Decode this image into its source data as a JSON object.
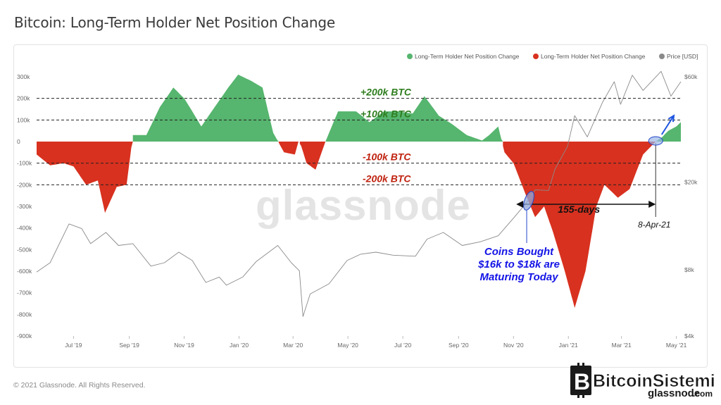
{
  "page": {
    "title": "Bitcoin: Long-Term Holder Net Position Change",
    "footer": "© 2021 Glassnode. All Rights Reserved.",
    "watermark": "glassnode",
    "brand_name": "BitcoinSistemi",
    "brand_sub": "glassnode",
    "brand_tld": ".com"
  },
  "colors": {
    "positive": "#56b56e",
    "negative": "#d8311f",
    "price": "#8a8a8a",
    "annotation_green": "#2e7d1e",
    "annotation_red": "#c0220f",
    "annotation_blue": "#1414e6",
    "arrow_blue": "#1f56e0"
  },
  "chart_data": {
    "type": "area",
    "title": "Bitcoin: Long-Term Holder Net Position Change",
    "legend": {
      "placement": "top-right",
      "items": [
        {
          "label": "Long-Term Holder Net Position Change",
          "color": "#56b56e"
        },
        {
          "label": "Long-Term Holder Net Position Change",
          "color": "#d8311f"
        },
        {
          "label": "Price [USD]",
          "color": "#8a8a8a"
        }
      ]
    },
    "x_ticks": [
      "Jul '19",
      "Sep '19",
      "Nov '19",
      "Jan '20",
      "Mar '20",
      "May '20",
      "Jul '20",
      "Sep '20",
      "Nov '20",
      "Jan '21",
      "Mar '21",
      "May '21"
    ],
    "y_left": {
      "ticks": [
        "300k",
        "200k",
        "100k",
        "0",
        "-100k",
        "-200k",
        "-300k",
        "-400k",
        "-500k",
        "-600k",
        "-700k",
        "-800k",
        "-900k"
      ],
      "range": [
        -900000,
        300000
      ]
    },
    "y_right": {
      "ticks": [
        "$60k",
        "$20k",
        "$8k",
        "$4k"
      ],
      "scale": "log",
      "range": [
        4000,
        60000
      ]
    },
    "series": [
      {
        "name": "Long-Term Holder Net Position Change",
        "unit": "BTC",
        "points": [
          [
            "2019-05-21",
            -60000
          ],
          [
            "2019-06-05",
            -110000
          ],
          [
            "2019-06-20",
            -100000
          ],
          [
            "2019-07-01",
            -115000
          ],
          [
            "2019-07-15",
            -200000
          ],
          [
            "2019-07-28",
            -180000
          ],
          [
            "2019-08-05",
            -330000
          ],
          [
            "2019-08-18",
            -210000
          ],
          [
            "2019-08-29",
            -200000
          ],
          [
            "2019-09-05",
            30000
          ],
          [
            "2019-09-20",
            30000
          ],
          [
            "2019-10-05",
            160000
          ],
          [
            "2019-10-20",
            250000
          ],
          [
            "2019-11-01",
            200000
          ],
          [
            "2019-11-10",
            140000
          ],
          [
            "2019-11-20",
            70000
          ],
          [
            "2019-12-05",
            160000
          ],
          [
            "2019-12-20",
            250000
          ],
          [
            "2019-12-31",
            310000
          ],
          [
            "2020-01-15",
            280000
          ],
          [
            "2020-01-27",
            250000
          ],
          [
            "2020-02-08",
            40000
          ],
          [
            "2020-02-20",
            -50000
          ],
          [
            "2020-03-03",
            -60000
          ],
          [
            "2020-03-07",
            0
          ],
          [
            "2020-03-10",
            -20000
          ],
          [
            "2020-03-16",
            -100000
          ],
          [
            "2020-03-26",
            -130000
          ],
          [
            "2020-04-06",
            0
          ],
          [
            "2020-04-20",
            140000
          ],
          [
            "2020-05-10",
            140000
          ],
          [
            "2020-05-25",
            90000
          ],
          [
            "2020-06-10",
            140000
          ],
          [
            "2020-06-25",
            140000
          ],
          [
            "2020-07-12",
            130000
          ],
          [
            "2020-07-25",
            210000
          ],
          [
            "2020-08-10",
            120000
          ],
          [
            "2020-08-25",
            80000
          ],
          [
            "2020-09-10",
            30000
          ],
          [
            "2020-09-27",
            5000
          ],
          [
            "2020-10-05",
            30000
          ],
          [
            "2020-10-15",
            70000
          ],
          [
            "2020-10-22",
            -50000
          ],
          [
            "2020-11-01",
            -100000
          ],
          [
            "2020-11-15",
            -250000
          ],
          [
            "2020-11-25",
            -350000
          ],
          [
            "2020-12-05",
            -300000
          ],
          [
            "2020-12-15",
            -420000
          ],
          [
            "2020-12-28",
            -600000
          ],
          [
            "2021-01-08",
            -770000
          ],
          [
            "2021-01-20",
            -600000
          ],
          [
            "2021-02-01",
            -300000
          ],
          [
            "2021-02-10",
            -200000
          ],
          [
            "2021-02-25",
            -260000
          ],
          [
            "2021-03-10",
            -220000
          ],
          [
            "2021-03-25",
            -60000
          ],
          [
            "2021-04-08",
            0
          ],
          [
            "2021-04-15",
            20000
          ],
          [
            "2021-04-22",
            50000
          ],
          [
            "2021-05-01",
            70000
          ],
          [
            "2021-05-06",
            90000
          ]
        ]
      },
      {
        "name": "Price [USD]",
        "unit": "USD",
        "points": [
          [
            "2019-05-21",
            7800
          ],
          [
            "2019-06-05",
            8600
          ],
          [
            "2019-06-26",
            12900
          ],
          [
            "2019-07-10",
            12300
          ],
          [
            "2019-07-20",
            10500
          ],
          [
            "2019-08-06",
            11800
          ],
          [
            "2019-08-20",
            10300
          ],
          [
            "2019-09-05",
            10500
          ],
          [
            "2019-09-25",
            8300
          ],
          [
            "2019-10-10",
            8600
          ],
          [
            "2019-10-26",
            9600
          ],
          [
            "2019-11-10",
            8800
          ],
          [
            "2019-11-25",
            7000
          ],
          [
            "2019-12-10",
            7400
          ],
          [
            "2019-12-18",
            6800
          ],
          [
            "2020-01-05",
            7400
          ],
          [
            "2020-01-20",
            8700
          ],
          [
            "2020-02-13",
            10300
          ],
          [
            "2020-02-28",
            8600
          ],
          [
            "2020-03-08",
            7900
          ],
          [
            "2020-03-12",
            4900
          ],
          [
            "2020-03-20",
            6200
          ],
          [
            "2020-04-10",
            6900
          ],
          [
            "2020-04-30",
            8800
          ],
          [
            "2020-05-15",
            9400
          ],
          [
            "2020-06-01",
            9600
          ],
          [
            "2020-06-20",
            9300
          ],
          [
            "2020-07-15",
            9200
          ],
          [
            "2020-07-28",
            11000
          ],
          [
            "2020-08-15",
            11800
          ],
          [
            "2020-09-05",
            10300
          ],
          [
            "2020-09-25",
            10700
          ],
          [
            "2020-10-15",
            11400
          ],
          [
            "2020-11-01",
            13700
          ],
          [
            "2020-11-15",
            16000
          ],
          [
            "2020-11-25",
            18400
          ],
          [
            "2020-12-10",
            18300
          ],
          [
            "2020-12-17",
            22800
          ],
          [
            "2020-12-31",
            29000
          ],
          [
            "2021-01-08",
            40000
          ],
          [
            "2021-01-22",
            32000
          ],
          [
            "2021-02-08",
            46000
          ],
          [
            "2021-02-21",
            57000
          ],
          [
            "2021-02-28",
            45000
          ],
          [
            "2021-03-13",
            61000
          ],
          [
            "2021-03-25",
            52000
          ],
          [
            "2021-04-14",
            63500
          ],
          [
            "2021-04-25",
            49000
          ],
          [
            "2021-05-06",
            57000
          ]
        ]
      }
    ],
    "reference_lines": [
      {
        "value": 200000,
        "label": "+200k BTC",
        "color": "#2e7d1e"
      },
      {
        "value": 100000,
        "label": "+100k BTC",
        "color": "#2e7d1e"
      },
      {
        "value": -100000,
        "label": "-100k BTC",
        "color": "#c0220f"
      },
      {
        "value": -200000,
        "label": "-200k BTC",
        "color": "#c0220f"
      }
    ],
    "annotations": {
      "duration": {
        "label": "155-days",
        "from": "2020-11-04",
        "to": "2021-04-08"
      },
      "date_marker": {
        "label": "8-Apr-21",
        "date": "2021-04-08"
      },
      "coins_note": [
        "Coins Bought",
        "$16k to $18k are",
        "Maturing Today"
      ]
    }
  }
}
